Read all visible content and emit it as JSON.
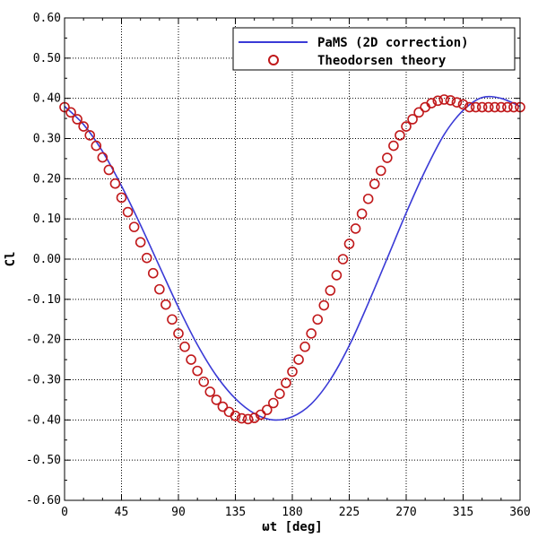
{
  "chart_data": {
    "type": "line",
    "xlabel": "ωt [deg]",
    "ylabel": "Cl",
    "xlim": [
      0,
      360
    ],
    "ylim": [
      -0.6,
      0.6
    ],
    "xticks": [
      0,
      45,
      90,
      135,
      180,
      225,
      270,
      315,
      360
    ],
    "yticks": [
      -0.6,
      -0.5,
      -0.4,
      -0.3,
      -0.2,
      -0.1,
      0.0,
      0.1,
      0.2,
      0.3,
      0.4,
      0.5,
      0.6
    ],
    "grid": true,
    "legend_position": "top-right",
    "colors": {
      "line": "#3a3ad6",
      "marker": "#c0181a"
    },
    "series": [
      {
        "name": "PaMS (2D correction)",
        "style": "line",
        "x": [
          0,
          15,
          30,
          45,
          60,
          75,
          90,
          105,
          120,
          135,
          150,
          165,
          180,
          195,
          210,
          225,
          240,
          255,
          270,
          285,
          300,
          315,
          330,
          345,
          360
        ],
        "y": [
          0.38,
          0.335,
          0.268,
          0.182,
          0.085,
          -0.018,
          -0.12,
          -0.213,
          -0.29,
          -0.347,
          -0.384,
          -0.4,
          -0.392,
          -0.36,
          -0.3,
          -0.215,
          -0.11,
          0.002,
          0.115,
          0.22,
          0.31,
          0.37,
          0.402,
          0.4,
          0.38
        ]
      },
      {
        "name": "Theodorsen theory",
        "style": "marker",
        "x": [
          0,
          5,
          10,
          15,
          20,
          25,
          30,
          35,
          40,
          45,
          50,
          55,
          60,
          65,
          70,
          75,
          80,
          85,
          90,
          95,
          100,
          105,
          110,
          115,
          120,
          125,
          130,
          135,
          140,
          145,
          150,
          155,
          160,
          165,
          170,
          175,
          180,
          185,
          190,
          195,
          200,
          205,
          210,
          215,
          220,
          225,
          230,
          235,
          240,
          245,
          250,
          255,
          260,
          265,
          270,
          275,
          280,
          285,
          290,
          295,
          300,
          305,
          310,
          315,
          320,
          325,
          330,
          335,
          340,
          345,
          350,
          355,
          360
        ],
        "y": [
          0.378,
          0.365,
          0.348,
          0.33,
          0.308,
          0.282,
          0.253,
          0.222,
          0.188,
          0.153,
          0.117,
          0.08,
          0.042,
          0.003,
          -0.035,
          -0.075,
          -0.113,
          -0.15,
          -0.185,
          -0.218,
          -0.25,
          -0.278,
          -0.305,
          -0.33,
          -0.35,
          -0.367,
          -0.38,
          -0.39,
          -0.396,
          -0.398,
          -0.395,
          -0.387,
          -0.375,
          -0.358,
          -0.335,
          -0.308,
          -0.28,
          -0.25,
          -0.218,
          -0.185,
          -0.15,
          -0.115,
          -0.078,
          -0.04,
          0.0,
          0.038,
          0.076,
          0.113,
          0.15,
          0.187,
          0.22,
          0.252,
          0.282,
          0.308,
          0.33,
          0.348,
          0.365,
          0.378,
          0.388,
          0.394,
          0.397,
          0.395,
          0.39,
          0.385,
          0.378,
          0.378,
          0.378,
          0.378,
          0.378,
          0.378,
          0.378,
          0.378,
          0.378
        ]
      }
    ]
  }
}
